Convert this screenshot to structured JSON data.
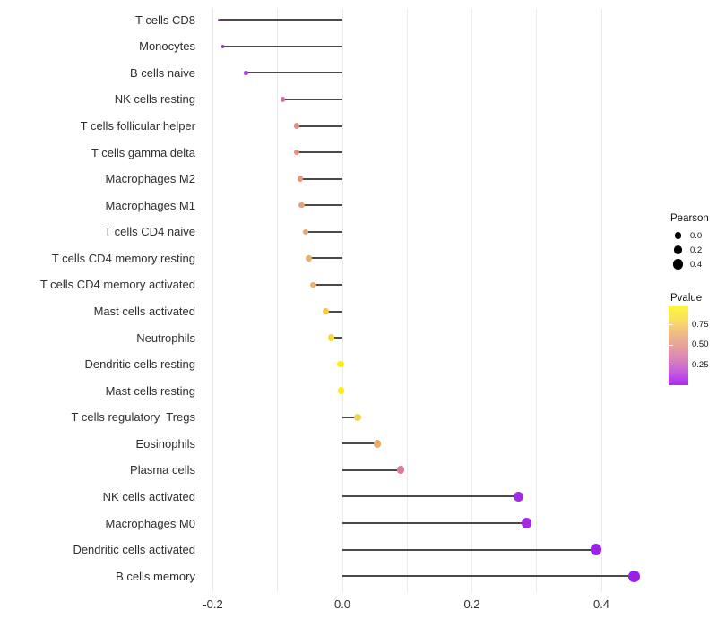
{
  "chart_data": {
    "type": "lollipop",
    "orientation": "horizontal",
    "title": "",
    "xlabel": "",
    "ylabel": "",
    "x_axis": {
      "tick_labels": [
        "-0.2",
        "0.0",
        "0.2",
        "0.4"
      ],
      "tick_values": [
        -0.2,
        0.0,
        0.2,
        0.4
      ],
      "gridline_values": [
        -0.2,
        -0.1,
        0.0,
        0.1,
        0.2,
        0.3,
        0.4
      ],
      "xlim": [
        -0.225,
        0.483
      ]
    },
    "rows": [
      {
        "label": "T cells CD8",
        "pearson": -0.19,
        "color": "#9A2CD0"
      },
      {
        "label": "Monocytes",
        "pearson": -0.185,
        "color": "#9C2ED2"
      },
      {
        "label": "B cells naive",
        "pearson": -0.149,
        "color": "#A83BD9"
      },
      {
        "label": "NK cells resting",
        "pearson": -0.092,
        "color": "#D66FA9"
      },
      {
        "label": "T cells follicular helper",
        "pearson": -0.071,
        "color": "#E48E85"
      },
      {
        "label": "T cells gamma delta",
        "pearson": -0.071,
        "color": "#E4907F"
      },
      {
        "label": "Macrophages M2",
        "pearson": -0.065,
        "color": "#E5987D"
      },
      {
        "label": "Macrophages M1",
        "pearson": -0.063,
        "color": "#E79F78"
      },
      {
        "label": "T cells CD4 naive",
        "pearson": -0.057,
        "color": "#EAA873"
      },
      {
        "label": "T cells CD4 memory resting",
        "pearson": -0.052,
        "color": "#ECAE6C"
      },
      {
        "label": "T cells CD4 memory activated",
        "pearson": -0.045,
        "color": "#EDB16A"
      },
      {
        "label": "Mast cells activated",
        "pearson": -0.026,
        "color": "#F3CA4D"
      },
      {
        "label": "Neutrophils",
        "pearson": -0.017,
        "color": "#F7DB37"
      },
      {
        "label": "Dendritic cells resting",
        "pearson": -0.003,
        "color": "#FDF104"
      },
      {
        "label": "Mast cells resting",
        "pearson": -0.002,
        "color": "#FDF104"
      },
      {
        "label": "T cells regulatory  Tregs",
        "pearson": 0.023,
        "color": "#F4D644"
      },
      {
        "label": "Eosinophils",
        "pearson": 0.054,
        "color": "#EAAB70"
      },
      {
        "label": "Plasma cells",
        "pearson": 0.09,
        "color": "#D97BA0"
      },
      {
        "label": "NK cells activated",
        "pearson": 0.272,
        "color": "#A12BE2"
      },
      {
        "label": "Macrophages M0",
        "pearson": 0.284,
        "color": "#A12BE2"
      },
      {
        "label": "Dendritic cells activated",
        "pearson": 0.392,
        "color": "#9D22E7"
      },
      {
        "label": "B cells memory",
        "pearson": 0.45,
        "color": "#9C1FE7"
      }
    ],
    "legend_pearson": {
      "title": "Pearson",
      "entries": [
        {
          "label": "0.0",
          "value": 0.0
        },
        {
          "label": "0.2",
          "value": 0.2
        },
        {
          "label": "0.4",
          "value": 0.4
        }
      ],
      "dot_color": "#000000"
    },
    "legend_pvalue": {
      "title": "Pvalue",
      "tick_labels": [
        "0.75",
        "0.50",
        "0.25"
      ],
      "gradient_stops": [
        "#FDF53D",
        "#F9E15F",
        "#F0BC85",
        "#E6A29B",
        "#D985B8",
        "#C75DDC",
        "#AE29F0"
      ]
    },
    "stem_color": "#4a4a4a",
    "gridline_color": "#ebebeb"
  }
}
